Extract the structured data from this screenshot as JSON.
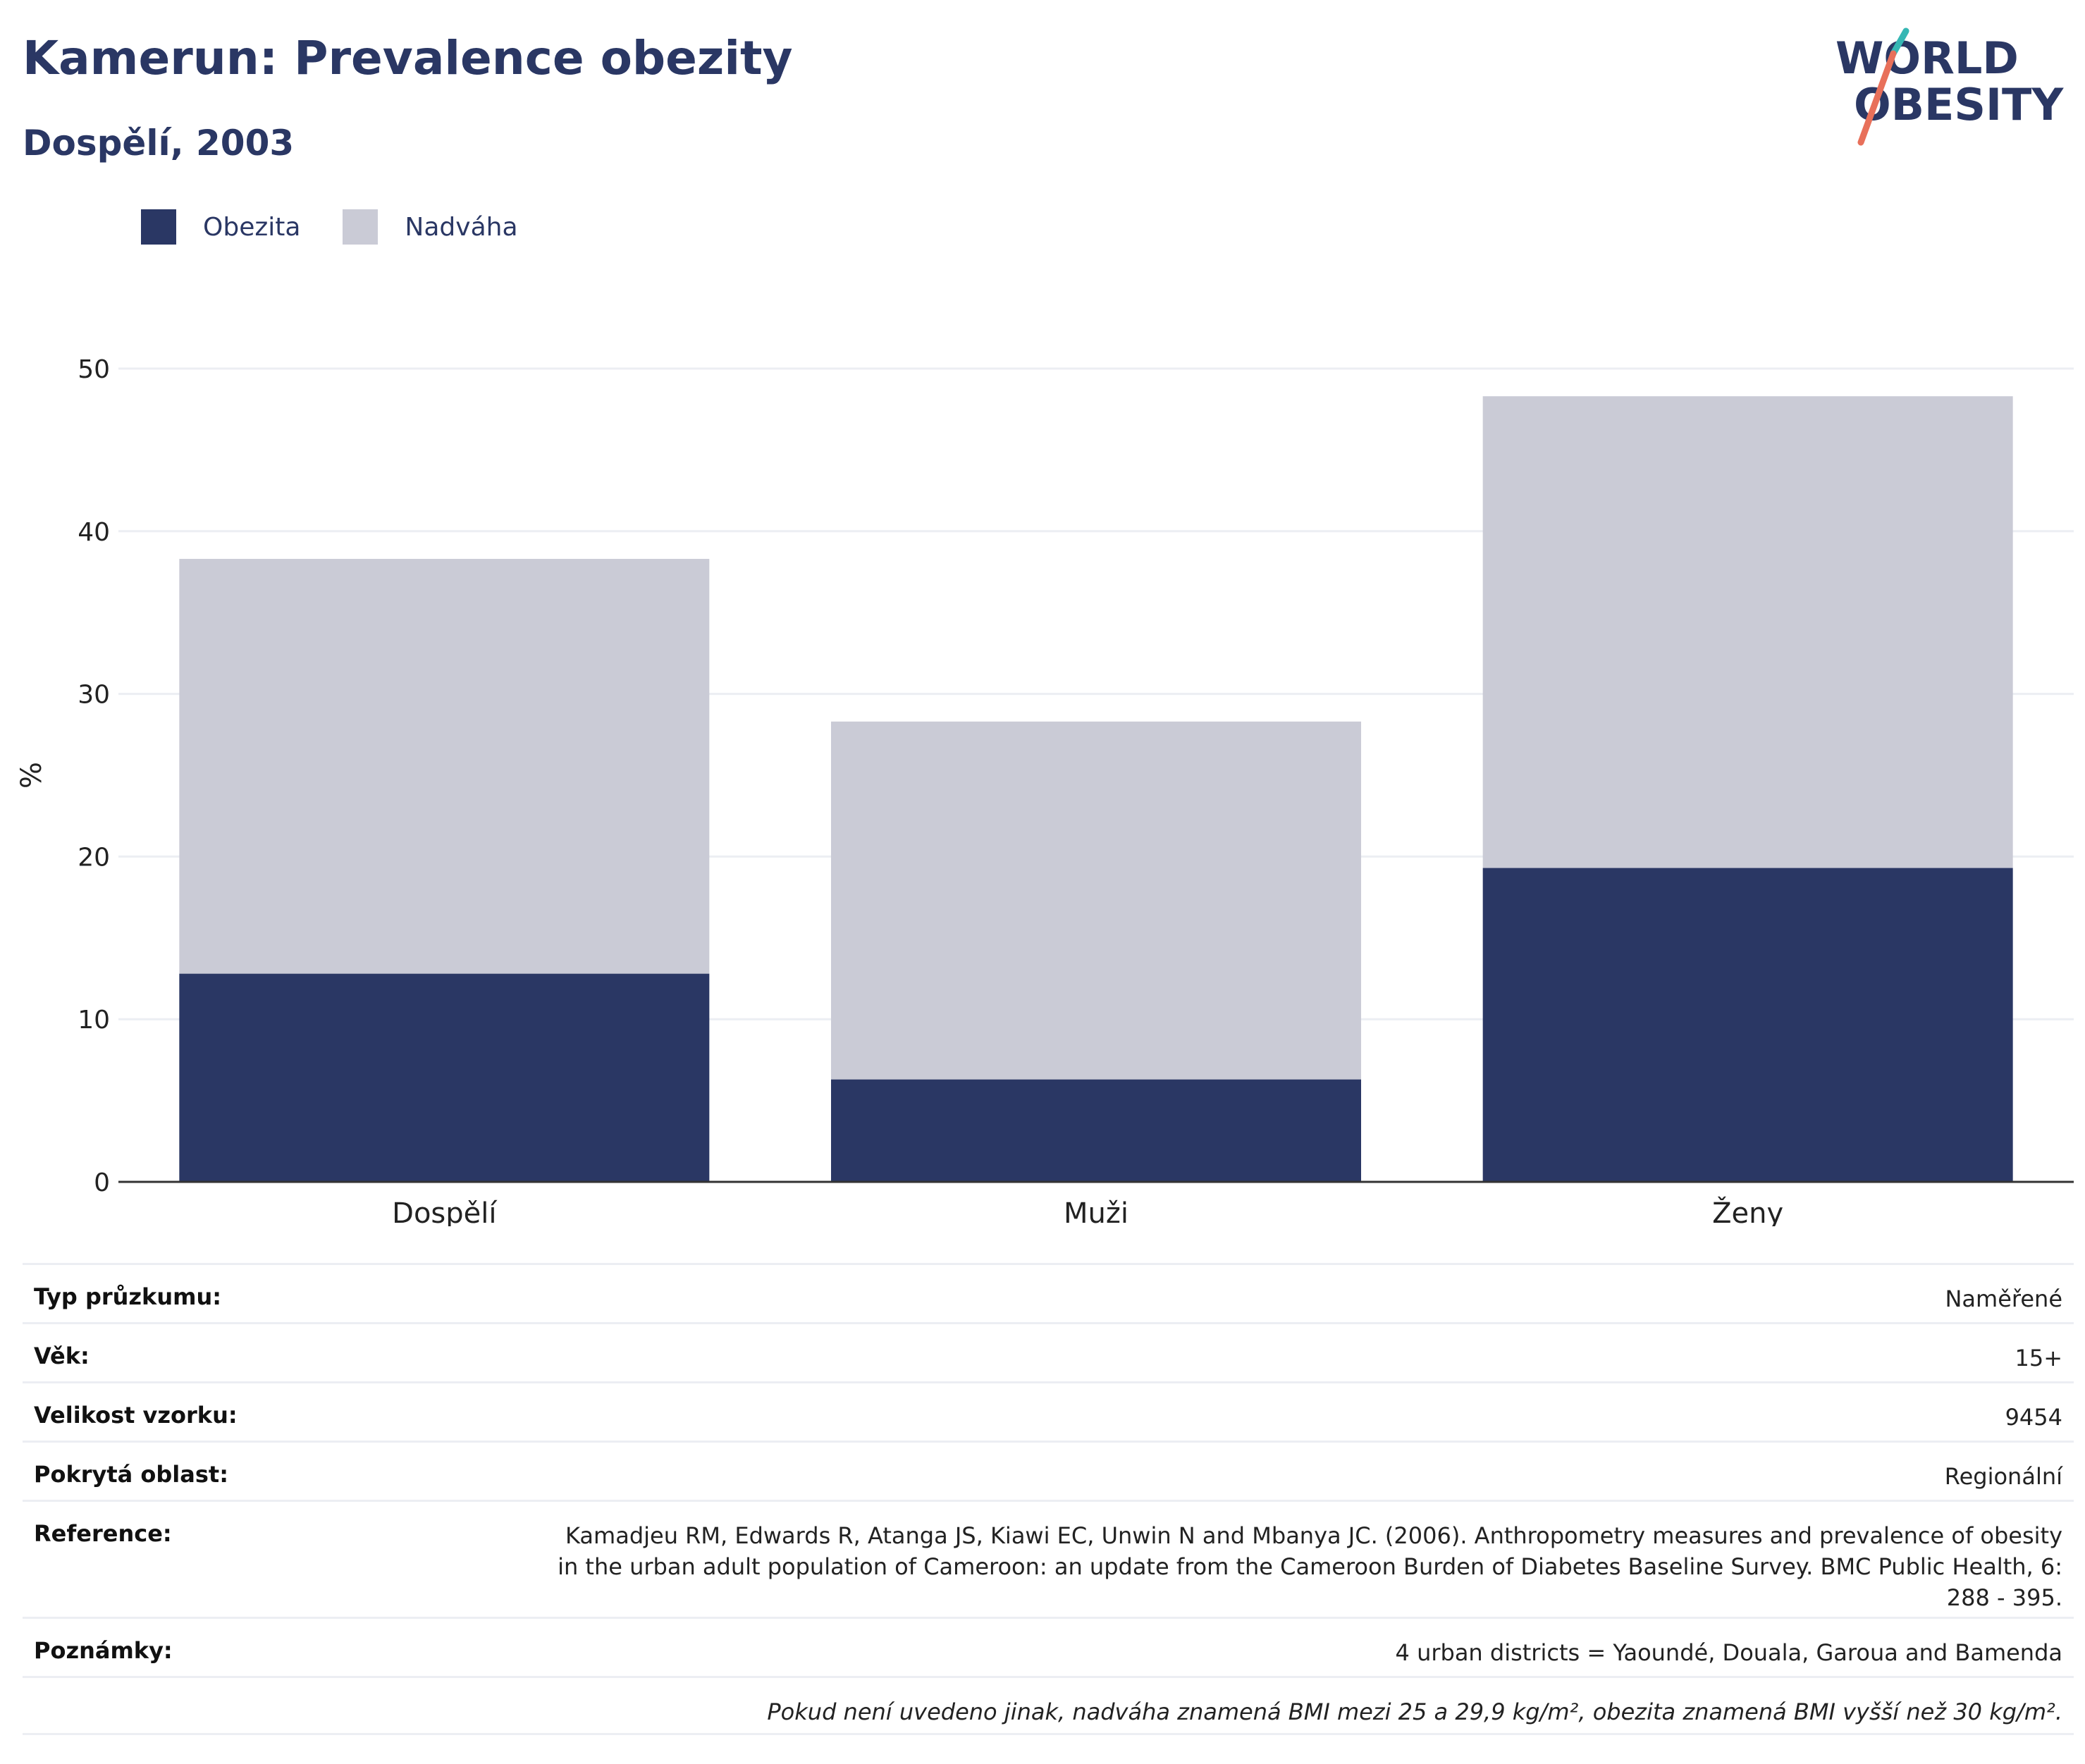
{
  "header": {
    "title": "Kamerun: Prevalence obezity",
    "subtitle": "Dospělí, 2003"
  },
  "logo": {
    "line1": "WORLD",
    "line2": "OBESITY"
  },
  "colors": {
    "obezita": "#2a3764",
    "nadvaha": "#cacbd6",
    "axis": "#333333",
    "grid": "#eceef3"
  },
  "chart_data": {
    "type": "bar",
    "stacked": true,
    "categories": [
      "Dospělí",
      "Muži",
      "Ženy"
    ],
    "series": [
      {
        "name": "Obezita",
        "values": [
          12.8,
          6.3,
          19.3
        ]
      },
      {
        "name": "Nadváha",
        "values": [
          25.5,
          22.0,
          29.0
        ]
      }
    ],
    "ylabel": "%",
    "ylim": [
      0,
      50
    ],
    "yticks": [
      "0",
      "10",
      "20",
      "30",
      "40",
      "50"
    ],
    "grid": true,
    "legend_position": "top-left"
  },
  "meta": {
    "survey_type": {
      "label": "Typ průzkumu:",
      "value": "Naměřené"
    },
    "age": {
      "label": "Věk:",
      "value": "15+"
    },
    "sample": {
      "label": "Velikost vzorku:",
      "value": "9454"
    },
    "area": {
      "label": "Pokrytá oblast:",
      "value": "Regionální"
    },
    "reference": {
      "label": "Reference:",
      "value": "Kamadjeu RM, Edwards R, Atanga JS, Kiawi EC, Unwin N and Mbanya JC. (2006). Anthropometry measures and prevalence of obesity in the urban adult population of Cameroon: an update from the Cameroon Burden of Diabetes Baseline Survey. BMC Public Health, 6: 288 - 395."
    },
    "notes": {
      "label": "Poznámky:",
      "value": "4 urban districts = Yaoundé, Douala, Garoua and Bamenda"
    },
    "footnote": "Pokud není uvedeno jinak, nadváha znamená BMI mezi 25 a 29,9 kg/m², obezita znamená BMI vyšší než 30 kg/m²."
  }
}
